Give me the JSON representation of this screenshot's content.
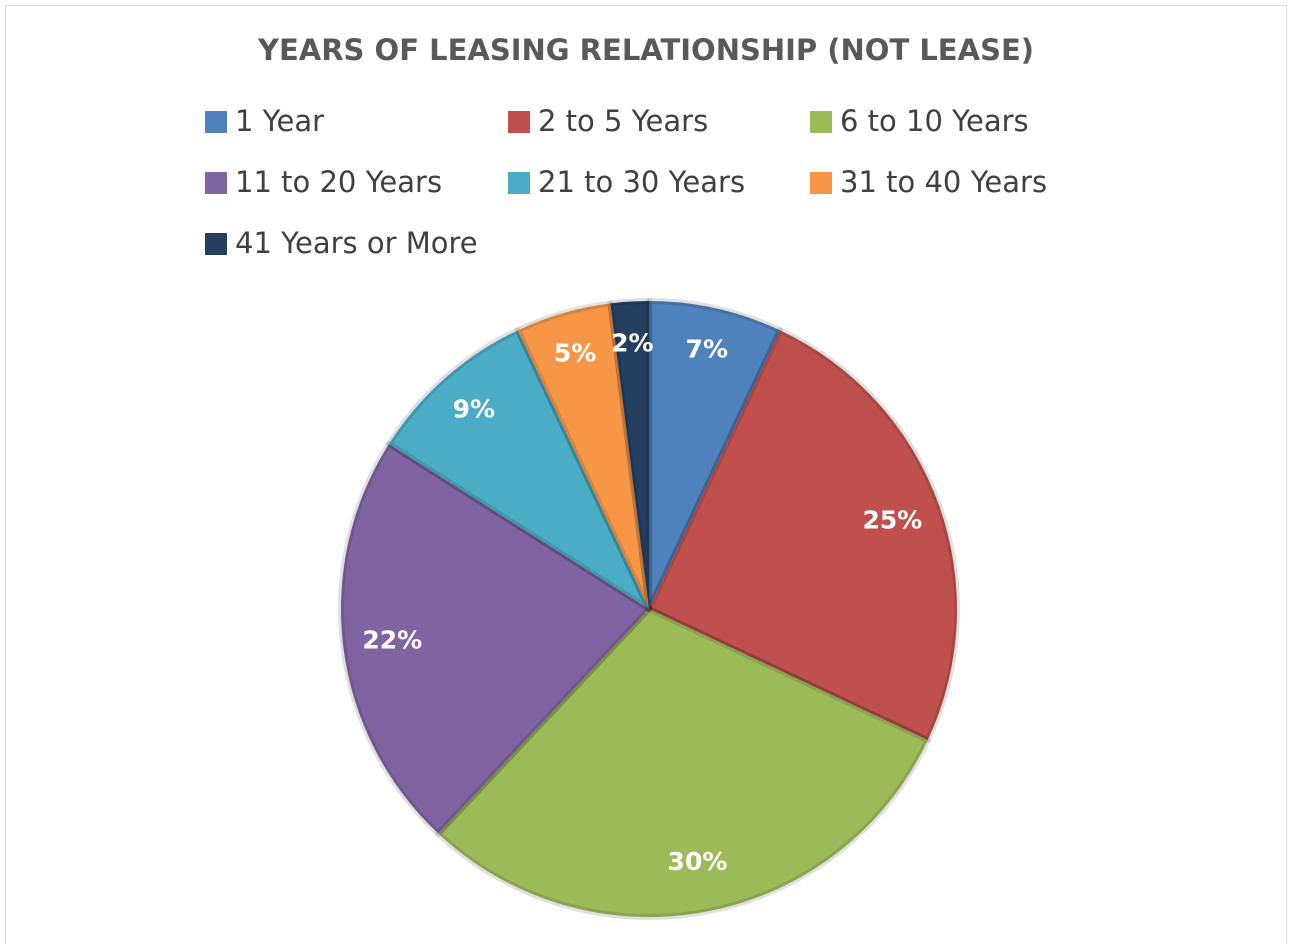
{
  "chart_data": {
    "type": "pie",
    "title": "YEARS OF LEASING RELATIONSHIP (NOT LEASE)",
    "categories": [
      "1 Year",
      "2 to 5 Years",
      "6 to 10 Years",
      "11 to 20 Years",
      "21 to 30 Years",
      "31 to 40 Years",
      "41 Years or More"
    ],
    "values": [
      7,
      25,
      30,
      22,
      9,
      5,
      2
    ],
    "value_labels": [
      "7%",
      "25%",
      "30%",
      "22%",
      "9%",
      "5%",
      "2%"
    ],
    "colors": [
      "#4f81bd",
      "#c0504d",
      "#9bbb59",
      "#8064a2",
      "#4bacc6",
      "#f79646",
      "#243f60"
    ]
  }
}
